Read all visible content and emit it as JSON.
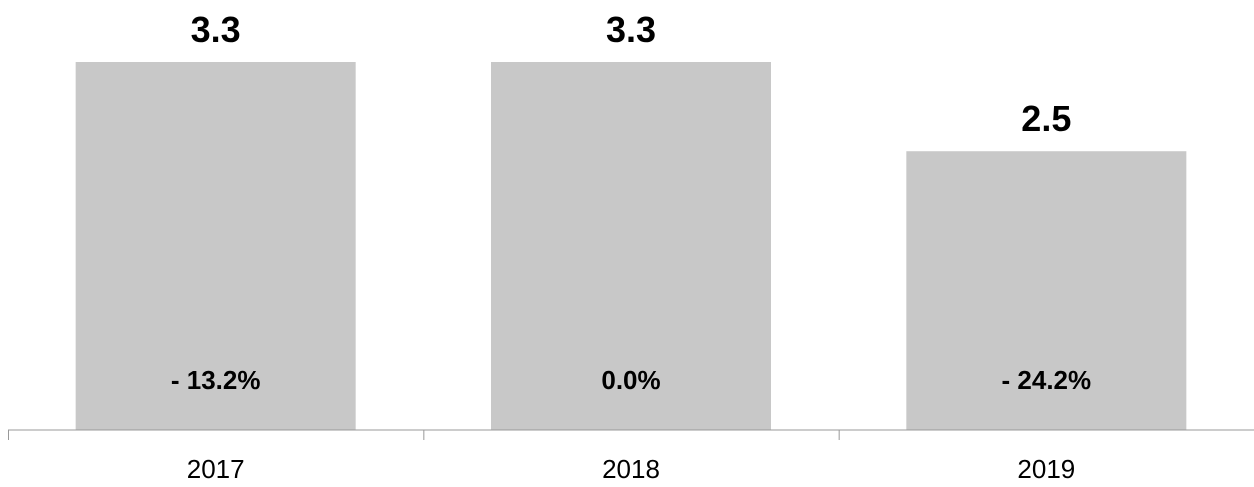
{
  "chart_data": {
    "type": "bar",
    "title": "",
    "xlabel": "",
    "ylabel": "",
    "categories": [
      "2017",
      "2018",
      "2019"
    ],
    "values": [
      3.3,
      3.3,
      2.5
    ],
    "value_labels": [
      "3.3",
      "3.3",
      "2.5"
    ],
    "change_labels": [
      "- 13.2%",
      "0.0%",
      "- 24.2%"
    ],
    "ylim": [
      0,
      3.3
    ],
    "grid": false,
    "legend": "none",
    "bar_color": "#c8c8c8",
    "axis_color": "#999999"
  }
}
